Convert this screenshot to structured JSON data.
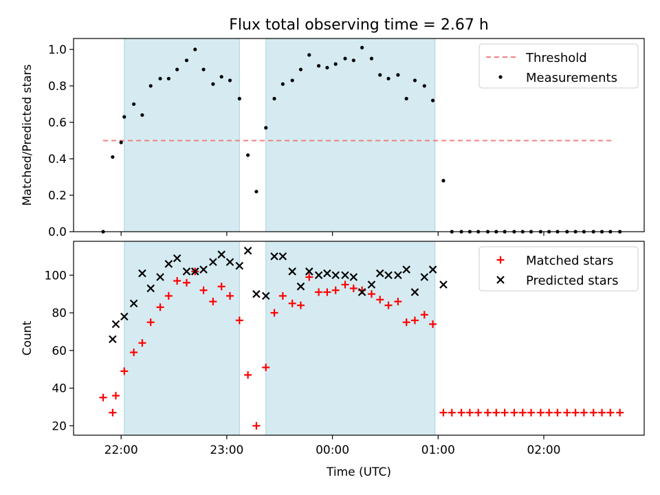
{
  "chart_data": {
    "type": "scatter",
    "title": "Flux total observing time = 2.67 h",
    "xlabel": "Time (UTC)",
    "x_unit": "hours of night on the clock, values past 24 are after midnight",
    "x_ticks": [
      {
        "value": 22,
        "label": "22:00"
      },
      {
        "value": 23,
        "label": "23:00"
      },
      {
        "value": 24,
        "label": "00:00"
      },
      {
        "value": 25,
        "label": "01:00"
      },
      {
        "value": 26,
        "label": "02:00"
      }
    ],
    "xlim": [
      21.55,
      26.95
    ],
    "shaded_intervals": [
      [
        22.03,
        23.12
      ],
      [
        23.37,
        24.97
      ]
    ],
    "panels": [
      {
        "ylabel": "Matched/Predicted stars",
        "ylim": [
          0,
          1.06
        ],
        "y_ticks": [
          {
            "value": 0.0,
            "label": "0.0"
          },
          {
            "value": 0.2,
            "label": "0.2"
          },
          {
            "value": 0.4,
            "label": "0.4"
          },
          {
            "value": 0.6,
            "label": "0.6"
          },
          {
            "value": 0.8,
            "label": "0.8"
          },
          {
            "value": 1.0,
            "label": "1.0"
          }
        ],
        "legend_position": "top-right",
        "threshold": {
          "name": "Threshold",
          "value": 0.5,
          "x_range": [
            21.83,
            26.67
          ],
          "color": "#f08080"
        },
        "series": [
          {
            "name": "Measurements",
            "marker": "dot",
            "color": "#000000",
            "x": [
              21.83,
              21.92,
              22.0,
              22.03,
              22.12,
              22.2,
              22.28,
              22.37,
              22.45,
              22.53,
              22.62,
              22.7,
              22.78,
              22.87,
              22.95,
              23.03,
              23.12,
              23.2,
              23.28,
              23.37,
              23.45,
              23.53,
              23.62,
              23.7,
              23.78,
              23.87,
              23.95,
              24.03,
              24.12,
              24.2,
              24.28,
              24.37,
              24.45,
              24.53,
              24.62,
              24.7,
              24.78,
              24.87,
              24.95,
              25.05,
              25.13,
              25.22,
              25.3,
              25.38,
              25.47,
              25.55,
              25.63,
              25.72,
              25.8,
              25.88,
              25.97,
              26.05,
              26.13,
              26.22,
              26.3,
              26.38,
              26.47,
              26.55,
              26.63,
              26.72
            ],
            "y": [
              0.0,
              0.41,
              0.49,
              0.63,
              0.7,
              0.64,
              0.8,
              0.84,
              0.84,
              0.89,
              0.94,
              1.0,
              0.89,
              0.81,
              0.85,
              0.83,
              0.73,
              0.42,
              0.22,
              0.57,
              0.73,
              0.81,
              0.83,
              0.89,
              0.97,
              0.91,
              0.9,
              0.92,
              0.95,
              0.94,
              1.01,
              0.95,
              0.86,
              0.84,
              0.86,
              0.73,
              0.83,
              0.8,
              0.72,
              0.28,
              0.0,
              0.0,
              0.0,
              0.0,
              0.0,
              0.0,
              0.0,
              0.0,
              0.0,
              0.0,
              0.0,
              0.0,
              0.0,
              0.0,
              0.0,
              0.0,
              0.0,
              0.0,
              0.0,
              0.0
            ]
          }
        ]
      },
      {
        "ylabel": "Count",
        "ylim": [
          15,
          118
        ],
        "y_ticks": [
          {
            "value": 20,
            "label": "20"
          },
          {
            "value": 40,
            "label": "40"
          },
          {
            "value": 60,
            "label": "60"
          },
          {
            "value": 80,
            "label": "80"
          },
          {
            "value": 100,
            "label": "100"
          }
        ],
        "legend_position": "top-right",
        "series": [
          {
            "name": "Matched stars",
            "marker": "plus",
            "color": "#ff0000",
            "x": [
              21.83,
              21.92,
              21.95,
              22.03,
              22.12,
              22.2,
              22.28,
              22.37,
              22.45,
              22.53,
              22.62,
              22.7,
              22.78,
              22.87,
              22.95,
              23.03,
              23.12,
              23.2,
              23.28,
              23.37,
              23.45,
              23.53,
              23.62,
              23.7,
              23.78,
              23.87,
              23.95,
              24.03,
              24.12,
              24.2,
              24.28,
              24.37,
              24.45,
              24.53,
              24.62,
              24.7,
              24.78,
              24.87,
              24.95,
              25.05,
              25.13,
              25.22,
              25.3,
              25.38,
              25.47,
              25.55,
              25.63,
              25.72,
              25.8,
              25.88,
              25.97,
              26.05,
              26.13,
              26.22,
              26.3,
              26.38,
              26.47,
              26.55,
              26.63,
              26.72
            ],
            "y": [
              35,
              27,
              36,
              49,
              59,
              64,
              75,
              83,
              89,
              97,
              96,
              102,
              92,
              86,
              94,
              89,
              76,
              47,
              20,
              51,
              80,
              89,
              85,
              84,
              99,
              91,
              91,
              92,
              95,
              93,
              92,
              90,
              87,
              84,
              86,
              75,
              76,
              79,
              74,
              27,
              27,
              27,
              27,
              27,
              27,
              27,
              27,
              27,
              27,
              27,
              27,
              27,
              27,
              27,
              27,
              27,
              27,
              27,
              27,
              27
            ]
          },
          {
            "name": "Predicted stars",
            "marker": "cross",
            "color": "#000000",
            "x": [
              21.92,
              21.95,
              22.03,
              22.12,
              22.2,
              22.28,
              22.37,
              22.45,
              22.53,
              22.62,
              22.7,
              22.78,
              22.87,
              22.95,
              23.03,
              23.12,
              23.2,
              23.28,
              23.37,
              23.45,
              23.53,
              23.62,
              23.7,
              23.78,
              23.87,
              23.95,
              24.03,
              24.12,
              24.2,
              24.28,
              24.37,
              24.45,
              24.53,
              24.62,
              24.7,
              24.78,
              24.87,
              24.95,
              25.05
            ],
            "y": [
              66,
              74,
              78,
              85,
              101,
              93,
              99,
              106,
              109,
              102,
              102,
              103,
              107,
              111,
              107,
              105,
              113,
              90,
              89,
              110,
              110,
              102,
              94,
              102,
              100,
              101,
              100,
              100,
              99,
              91,
              95,
              101,
              100,
              100,
              103,
              91,
              99,
              103,
              95
            ]
          }
        ]
      }
    ]
  }
}
